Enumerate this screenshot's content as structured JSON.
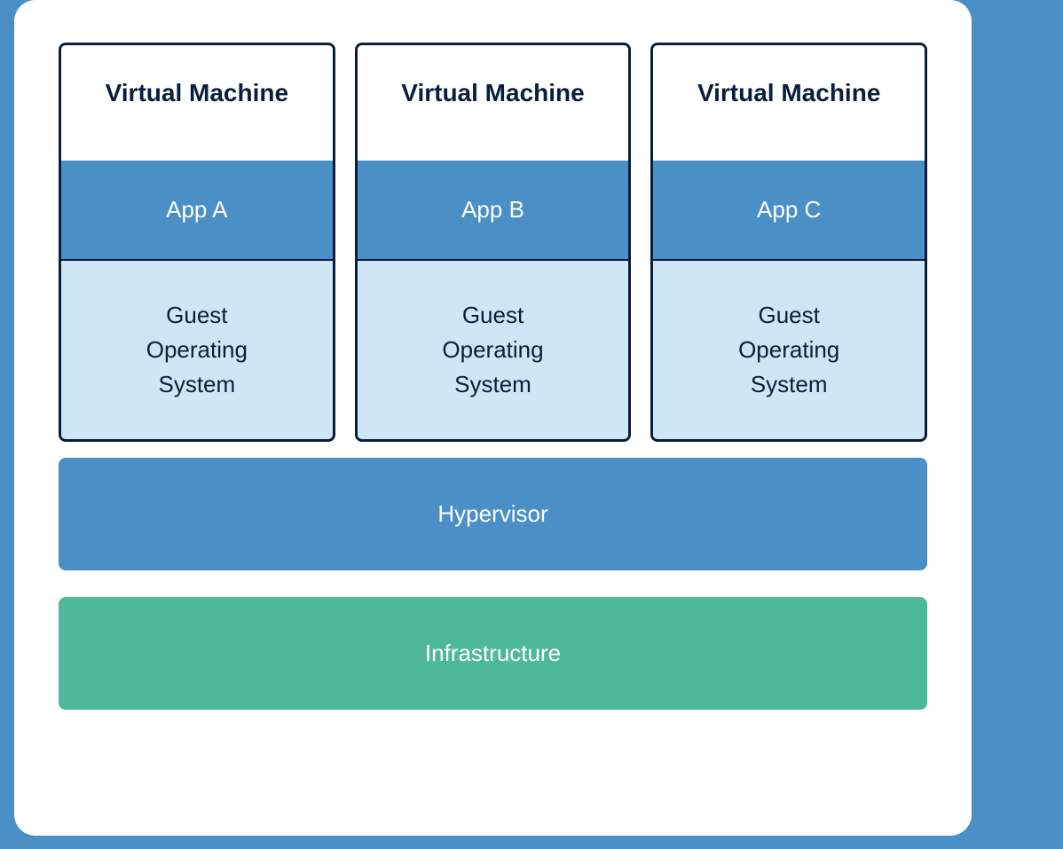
{
  "diagram": {
    "type": "infographic",
    "layout": "stacked-architecture",
    "background_color": "#4a90c7",
    "card_background": "#ffffff",
    "card_border_radius": 24,
    "vms": [
      {
        "title": "Virtual Machine",
        "app": "App A",
        "os_line1": "Guest",
        "os_line2": "Operating",
        "os_line3": "System"
      },
      {
        "title": "Virtual Machine",
        "app": "App B",
        "os_line1": "Guest",
        "os_line2": "Operating",
        "os_line3": "System"
      },
      {
        "title": "Virtual Machine",
        "app": "App C",
        "os_line1": "Guest",
        "os_line2": "Operating",
        "os_line3": "System"
      }
    ],
    "vm_border_color": "#0a1e3c",
    "vm_border_width": 3,
    "vm_title_color": "#0a1e3c",
    "vm_title_bg": "#ffffff",
    "vm_title_fontsize": 28,
    "vm_title_fontweight": 700,
    "vm_app_bg": "#4a90c7",
    "vm_app_color": "#ffffff",
    "vm_app_fontsize": 26,
    "vm_os_bg": "#cfe6f7",
    "vm_os_color": "#0a1e3c",
    "vm_os_fontsize": 26,
    "hypervisor": {
      "label": "Hypervisor",
      "bg": "#4a90c7",
      "color": "#ffffff",
      "fontsize": 26,
      "border_radius": 8
    },
    "infrastructure": {
      "label": "Infrastructure",
      "bg": "#4db89a",
      "color": "#ffffff",
      "fontsize": 26,
      "border_radius": 8
    }
  }
}
